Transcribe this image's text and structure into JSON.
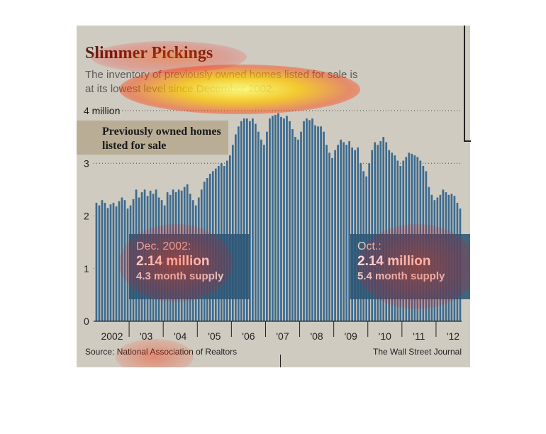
{
  "title": "Slimmer Pickings",
  "subtitle": "The inventory of previously owned homes listed for sale is at its lowest level since December 2002.",
  "legend_label": "Previously owned homes listed for sale",
  "callouts": [
    {
      "line1": "Dec. 2002:",
      "line2": "2.14 million",
      "line3": "4.3 month supply"
    },
    {
      "line1": "Oct.:",
      "line2": "2.14 million",
      "line3": "5.4 month supply"
    }
  ],
  "source": "Source: National Association of Realtors",
  "credit": "The Wall Street Journal",
  "colors": {
    "bar": "#3d6b8f",
    "background": "#cfcbc0",
    "title": "#5a1e12",
    "callout": "#2e5676"
  },
  "chart_data": {
    "type": "bar",
    "title": "Slimmer Pickings",
    "ylabel": "",
    "y_ticks": [
      "0",
      "1",
      "2",
      "3",
      "4 million"
    ],
    "x_ticks": [
      "2002",
      "'03",
      "'04",
      "'05",
      "'06",
      "'07",
      "'08",
      "'09",
      "'10",
      "'11",
      "'12"
    ],
    "ylim": [
      0,
      4
    ],
    "grid": "dotted horizontal",
    "series": [
      {
        "name": "Previously owned homes listed for sale",
        "start": "2002-01",
        "frequency": "monthly",
        "values": [
          2.25,
          2.2,
          2.3,
          2.25,
          2.15,
          2.22,
          2.25,
          2.18,
          2.28,
          2.35,
          2.3,
          2.14,
          2.2,
          2.32,
          2.5,
          2.35,
          2.45,
          2.5,
          2.38,
          2.48,
          2.42,
          2.5,
          2.35,
          2.3,
          2.2,
          2.45,
          2.4,
          2.5,
          2.45,
          2.5,
          2.48,
          2.55,
          2.6,
          2.42,
          2.3,
          2.2,
          2.35,
          2.5,
          2.65,
          2.72,
          2.8,
          2.85,
          2.9,
          2.95,
          3.0,
          2.95,
          3.05,
          3.15,
          3.35,
          3.55,
          3.7,
          3.8,
          3.85,
          3.85,
          3.8,
          3.85,
          3.75,
          3.6,
          3.45,
          3.35,
          3.6,
          3.85,
          3.9,
          3.92,
          3.95,
          3.88,
          3.85,
          3.9,
          3.8,
          3.65,
          3.5,
          3.45,
          3.6,
          3.8,
          3.85,
          3.82,
          3.85,
          3.72,
          3.7,
          3.7,
          3.6,
          3.35,
          3.2,
          3.1,
          3.25,
          3.35,
          3.45,
          3.4,
          3.35,
          3.42,
          3.3,
          3.25,
          3.3,
          3.0,
          2.85,
          2.75,
          3.0,
          3.25,
          3.4,
          3.35,
          3.42,
          3.5,
          3.4,
          3.25,
          3.2,
          3.15,
          3.05,
          2.95,
          3.05,
          3.12,
          3.2,
          3.18,
          3.15,
          3.12,
          3.05,
          2.95,
          2.85,
          2.55,
          2.4,
          2.3,
          2.35,
          2.4,
          2.5,
          2.45,
          2.4,
          2.42,
          2.38,
          2.25,
          2.14
        ]
      }
    ],
    "annotations": [
      "Dec. 2002: 2.14 million, 4.3 month supply",
      "Oct.: 2.14 million, 5.4 month supply"
    ]
  }
}
